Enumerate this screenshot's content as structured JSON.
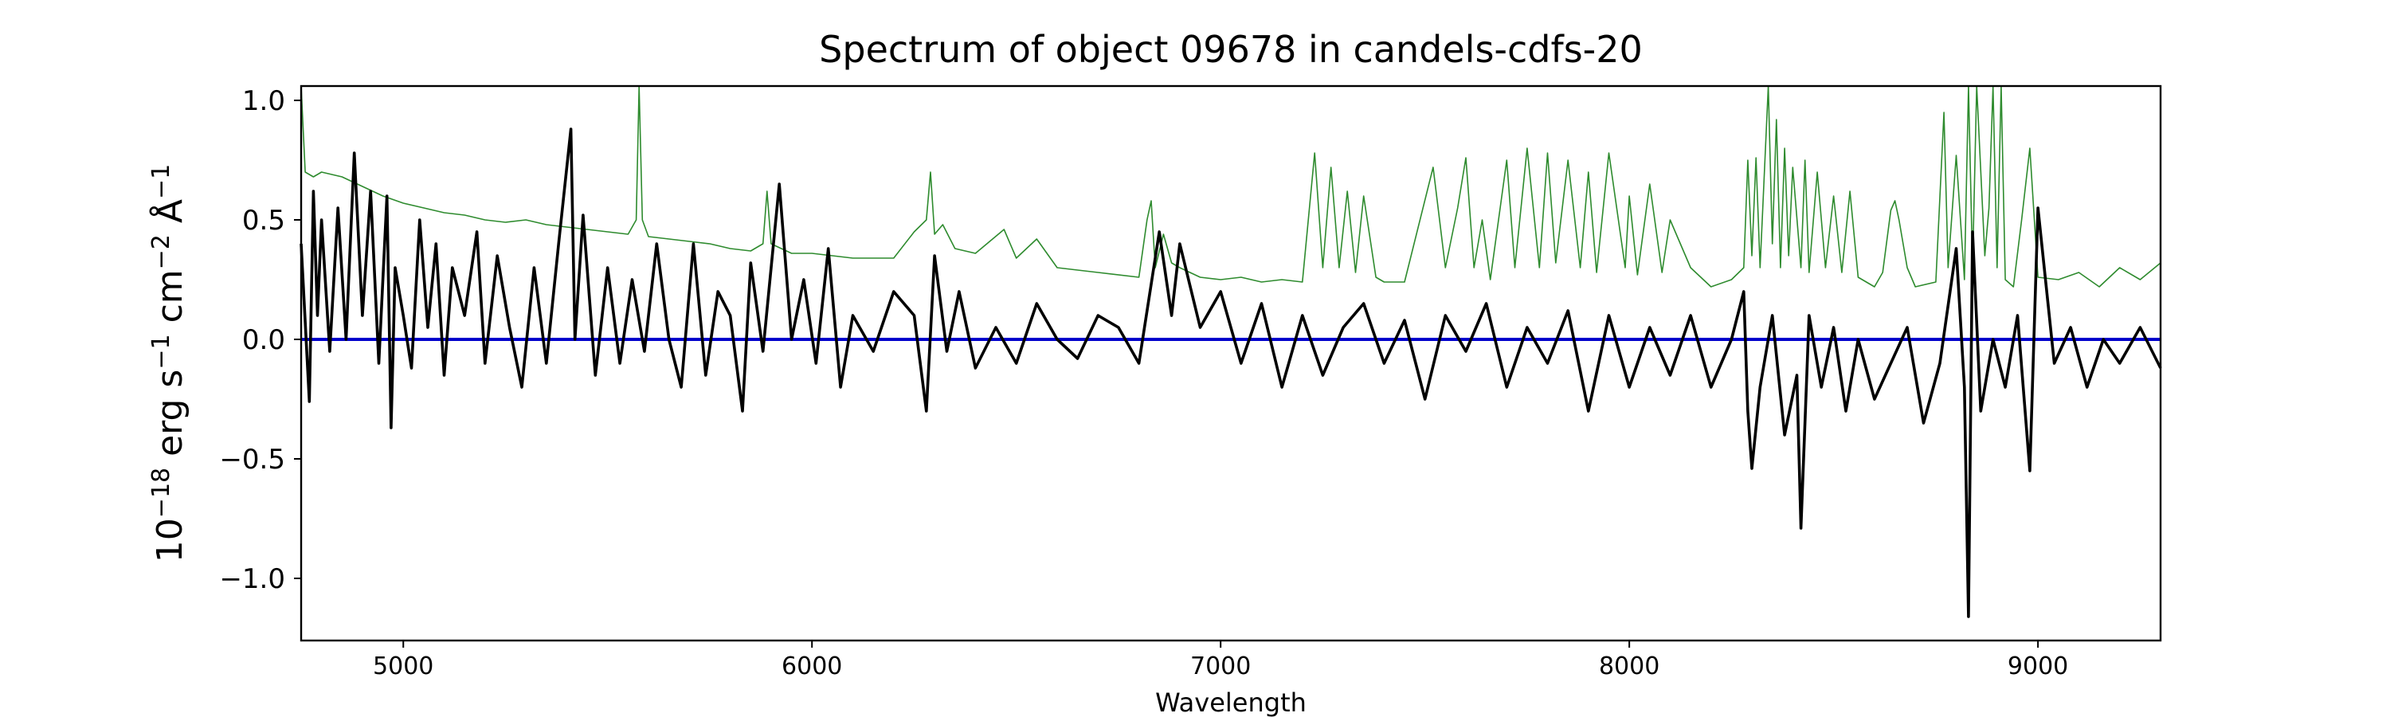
{
  "chart_data": {
    "type": "line",
    "title": "Spectrum of object 09678 in candels-cdfs-20",
    "xlabel": "Wavelength",
    "ylabel": {
      "base": "10",
      "exp": "−18",
      "unit1": " erg s",
      "unit1_exp": "−1",
      "unit2": " cm",
      "unit2_exp": "−2",
      "unit3": " Å",
      "unit3_exp": "−1"
    },
    "xlim": [
      4750,
      9300
    ],
    "ylim": [
      -1.26,
      1.06
    ],
    "x_ticks": [
      5000,
      6000,
      7000,
      8000,
      9000
    ],
    "x_tick_labels": [
      "5000",
      "6000",
      "7000",
      "8000",
      "9000"
    ],
    "y_ticks": [
      -1.0,
      -0.5,
      0.0,
      0.5,
      1.0
    ],
    "y_tick_labels": [
      "−1.0",
      "−0.5",
      "0.0",
      "0.5",
      "1.0"
    ],
    "grid": false,
    "legend": "none",
    "series": [
      {
        "role": "error",
        "color": "#2e8b2e",
        "x": [
          4750,
          4760,
          4780,
          4800,
          4850,
          4900,
          4950,
          5000,
          5050,
          5100,
          5150,
          5200,
          5250,
          5300,
          5350,
          5400,
          5450,
          5500,
          5550,
          5570,
          5577,
          5585,
          5600,
          5650,
          5700,
          5750,
          5800,
          5850,
          5880,
          5890,
          5900,
          5950,
          6000,
          6100,
          6200,
          6250,
          6280,
          6290,
          6300,
          6320,
          6350,
          6400,
          6470,
          6500,
          6550,
          6600,
          6700,
          6800,
          6820,
          6830,
          6840,
          6860,
          6880,
          6900,
          6950,
          7000,
          7050,
          7100,
          7150,
          7200,
          7230,
          7250,
          7270,
          7290,
          7310,
          7330,
          7350,
          7380,
          7400,
          7450,
          7520,
          7550,
          7580,
          7600,
          7620,
          7640,
          7660,
          7700,
          7720,
          7750,
          7780,
          7800,
          7820,
          7850,
          7880,
          7900,
          7920,
          7950,
          7990,
          8000,
          8020,
          8050,
          8080,
          8100,
          8150,
          8200,
          8250,
          8280,
          8290,
          8300,
          8310,
          8320,
          8340,
          8350,
          8360,
          8370,
          8380,
          8390,
          8400,
          8420,
          8430,
          8440,
          8460,
          8480,
          8500,
          8520,
          8540,
          8560,
          8600,
          8620,
          8640,
          8650,
          8660,
          8680,
          8700,
          8750,
          8770,
          8780,
          8800,
          8820,
          8830,
          8840,
          8850,
          8870,
          8880,
          8890,
          8900,
          8910,
          8920,
          8940,
          8960,
          8980,
          9000,
          9050,
          9100,
          9150,
          9200,
          9250,
          9300
        ],
        "values": [
          1.06,
          0.7,
          0.68,
          0.7,
          0.68,
          0.64,
          0.6,
          0.57,
          0.55,
          0.53,
          0.52,
          0.5,
          0.49,
          0.5,
          0.48,
          0.47,
          0.46,
          0.45,
          0.44,
          0.5,
          1.06,
          0.5,
          0.43,
          0.42,
          0.41,
          0.4,
          0.38,
          0.37,
          0.4,
          0.62,
          0.4,
          0.36,
          0.36,
          0.34,
          0.34,
          0.45,
          0.5,
          0.7,
          0.44,
          0.48,
          0.38,
          0.36,
          0.46,
          0.34,
          0.42,
          0.3,
          0.28,
          0.26,
          0.5,
          0.58,
          0.3,
          0.44,
          0.32,
          0.3,
          0.26,
          0.25,
          0.26,
          0.24,
          0.25,
          0.24,
          0.78,
          0.3,
          0.72,
          0.3,
          0.62,
          0.28,
          0.6,
          0.26,
          0.24,
          0.24,
          0.72,
          0.3,
          0.55,
          0.76,
          0.3,
          0.5,
          0.25,
          0.75,
          0.3,
          0.8,
          0.3,
          0.78,
          0.32,
          0.75,
          0.3,
          0.7,
          0.28,
          0.78,
          0.3,
          0.6,
          0.27,
          0.65,
          0.28,
          0.5,
          0.3,
          0.22,
          0.25,
          0.3,
          0.75,
          0.35,
          0.76,
          0.3,
          1.06,
          0.4,
          0.92,
          0.3,
          0.8,
          0.35,
          0.72,
          0.3,
          0.75,
          0.28,
          0.7,
          0.3,
          0.6,
          0.28,
          0.62,
          0.26,
          0.22,
          0.28,
          0.54,
          0.58,
          0.5,
          0.3,
          0.22,
          0.24,
          0.95,
          0.3,
          0.77,
          0.25,
          1.06,
          0.3,
          1.06,
          0.35,
          0.55,
          1.06,
          0.3,
          1.06,
          0.25,
          0.22,
          0.5,
          0.8,
          0.26,
          0.25,
          0.28,
          0.22,
          0.3,
          0.25,
          0.32
        ]
      },
      {
        "role": "zero",
        "color": "#0000cc",
        "x": [
          4750,
          9300
        ],
        "values": [
          0.0,
          0.0
        ]
      },
      {
        "role": "flux",
        "color": "#000000",
        "x": [
          4750,
          4770,
          4780,
          4790,
          4800,
          4820,
          4840,
          4860,
          4880,
          4900,
          4920,
          4940,
          4960,
          4970,
          4980,
          5000,
          5020,
          5040,
          5060,
          5080,
          5100,
          5120,
          5150,
          5180,
          5200,
          5230,
          5260,
          5290,
          5320,
          5350,
          5380,
          5410,
          5420,
          5440,
          5470,
          5500,
          5530,
          5560,
          5590,
          5620,
          5650,
          5680,
          5710,
          5740,
          5770,
          5800,
          5830,
          5850,
          5880,
          5920,
          5950,
          5980,
          6010,
          6040,
          6070,
          6100,
          6150,
          6200,
          6250,
          6280,
          6300,
          6330,
          6360,
          6400,
          6450,
          6500,
          6550,
          6600,
          6650,
          6700,
          6750,
          6800,
          6850,
          6880,
          6900,
          6950,
          7000,
          7050,
          7100,
          7150,
          7200,
          7250,
          7300,
          7350,
          7400,
          7450,
          7500,
          7550,
          7600,
          7650,
          7700,
          7750,
          7800,
          7850,
          7900,
          7950,
          8000,
          8050,
          8100,
          8150,
          8200,
          8250,
          8280,
          8290,
          8300,
          8320,
          8350,
          8380,
          8410,
          8420,
          8440,
          8470,
          8500,
          8530,
          8560,
          8600,
          8640,
          8680,
          8720,
          8760,
          8800,
          8820,
          8830,
          8840,
          8860,
          8890,
          8920,
          8950,
          8980,
          9000,
          9040,
          9080,
          9120,
          9160,
          9200,
          9250,
          9300
        ],
        "values": [
          0.4,
          -0.26,
          0.62,
          0.1,
          0.5,
          -0.05,
          0.55,
          0.0,
          0.78,
          0.1,
          0.62,
          -0.1,
          0.6,
          -0.37,
          0.3,
          0.1,
          -0.12,
          0.5,
          0.05,
          0.4,
          -0.15,
          0.3,
          0.1,
          0.45,
          -0.1,
          0.35,
          0.05,
          -0.2,
          0.3,
          -0.1,
          0.4,
          0.88,
          0.0,
          0.52,
          -0.15,
          0.3,
          -0.1,
          0.25,
          -0.05,
          0.4,
          0.0,
          -0.2,
          0.4,
          -0.15,
          0.2,
          0.1,
          -0.3,
          0.32,
          -0.05,
          0.65,
          0.0,
          0.25,
          -0.1,
          0.38,
          -0.2,
          0.1,
          -0.05,
          0.2,
          0.1,
          -0.3,
          0.35,
          -0.05,
          0.2,
          -0.12,
          0.05,
          -0.1,
          0.15,
          0.0,
          -0.08,
          0.1,
          0.05,
          -0.1,
          0.45,
          0.1,
          0.4,
          0.05,
          0.2,
          -0.1,
          0.15,
          -0.2,
          0.1,
          -0.15,
          0.05,
          0.15,
          -0.1,
          0.08,
          -0.25,
          0.1,
          -0.05,
          0.15,
          -0.2,
          0.05,
          -0.1,
          0.12,
          -0.3,
          0.1,
          -0.2,
          0.05,
          -0.15,
          0.1,
          -0.2,
          0.0,
          0.2,
          -0.3,
          -0.54,
          -0.2,
          0.1,
          -0.4,
          -0.15,
          -0.79,
          0.1,
          -0.2,
          0.05,
          -0.3,
          0.0,
          -0.25,
          -0.1,
          0.05,
          -0.35,
          -0.1,
          0.38,
          -0.2,
          -1.16,
          0.45,
          -0.3,
          0.0,
          -0.2,
          0.1,
          -0.55,
          0.55,
          -0.1,
          0.05,
          -0.2,
          0.0,
          -0.1,
          0.05,
          -0.12
        ]
      }
    ]
  }
}
